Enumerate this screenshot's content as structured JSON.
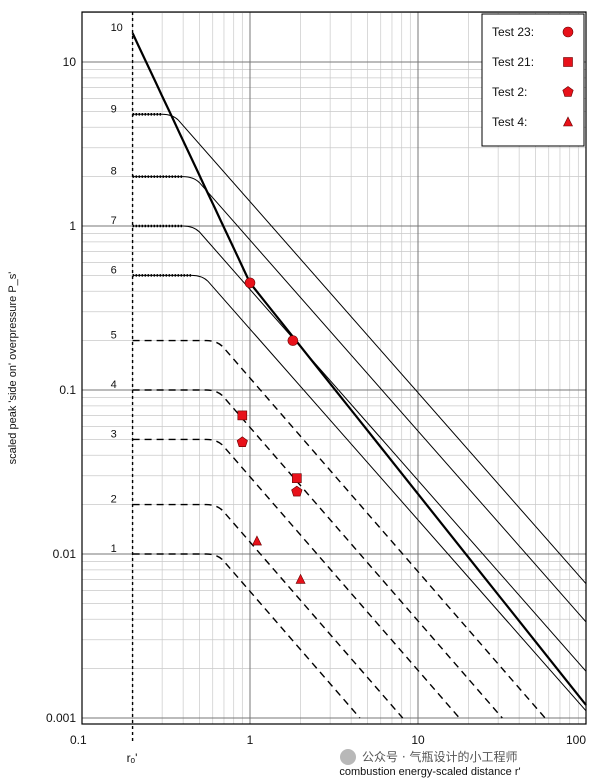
{
  "chart_data": {
    "type": "line",
    "xlabel": "combustion energy-scaled distance r'",
    "ylabel": "scaled peak 'side on' overpressure P_s'",
    "x_scale": "log",
    "y_scale": "log",
    "xlim": [
      0.1,
      100
    ],
    "ylim": [
      0.001,
      20
    ],
    "x_ticks": [
      0.1,
      1,
      10,
      100
    ],
    "x_tick_labels": [
      "0.1",
      "1",
      "10",
      "100"
    ],
    "y_ticks": [
      0.001,
      0.01,
      0.1,
      1,
      10
    ],
    "y_tick_labels": [
      "0.001",
      "0.01",
      "0.1",
      "1",
      "10"
    ],
    "r0_marker": {
      "x": 0.2,
      "label": "rₒ'"
    },
    "grid": true,
    "curves": [
      {
        "number": "10",
        "plateau": 15,
        "style": "solid",
        "knee": 0.2
      },
      {
        "number": "9",
        "plateau": 4.8,
        "style": "dotted-solid",
        "knee": 0.3
      },
      {
        "number": "8",
        "plateau": 2.0,
        "style": "dotted-solid",
        "knee": 0.4
      },
      {
        "number": "7",
        "plateau": 1.0,
        "style": "dotted-solid",
        "knee": 0.4
      },
      {
        "number": "6",
        "plateau": 0.5,
        "style": "dotted-solid",
        "knee": 0.45
      },
      {
        "number": "5",
        "plateau": 0.2,
        "style": "dashed",
        "knee": 0.55
      },
      {
        "number": "4",
        "plateau": 0.1,
        "style": "dashed",
        "knee": 0.55
      },
      {
        "number": "3",
        "plateau": 0.05,
        "style": "dashed",
        "knee": 0.55
      },
      {
        "number": "2",
        "plateau": 0.02,
        "style": "dashed",
        "knee": 0.55
      },
      {
        "number": "1",
        "plateau": 0.01,
        "style": "dashed",
        "knee": 0.55
      }
    ],
    "series": [
      {
        "name": "Test 23",
        "marker": "circle",
        "points": [
          {
            "x": 1.0,
            "y": 0.45
          },
          {
            "x": 1.8,
            "y": 0.2
          }
        ]
      },
      {
        "name": "Test 21",
        "marker": "square",
        "points": [
          {
            "x": 0.9,
            "y": 0.07
          },
          {
            "x": 1.9,
            "y": 0.029
          }
        ]
      },
      {
        "name": "Test 2",
        "marker": "pentagon",
        "points": [
          {
            "x": 0.9,
            "y": 0.048
          },
          {
            "x": 1.9,
            "y": 0.024
          }
        ]
      },
      {
        "name": "Test 4",
        "marker": "triangle",
        "points": [
          {
            "x": 1.1,
            "y": 0.012
          },
          {
            "x": 2.0,
            "y": 0.007
          }
        ]
      }
    ],
    "legend_position": "top-right",
    "marker_color": "#e8111a"
  },
  "legend": {
    "items": [
      "Test 23:",
      "Test 21:",
      "Test 2:",
      "Test 4:"
    ]
  },
  "watermark": "公众号 · 气瓶设计的小工程师"
}
